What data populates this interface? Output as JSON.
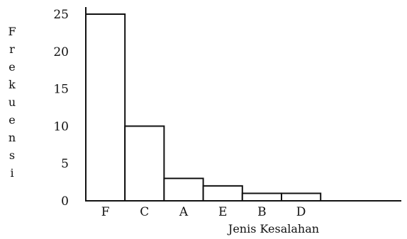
{
  "chart_data": {
    "type": "bar",
    "categories": [
      "F",
      "C",
      "A",
      "E",
      "B",
      "D"
    ],
    "values": [
      25,
      10,
      3,
      2,
      1,
      1
    ],
    "xlabel": "Jenis Kesalahan",
    "ylabel": "Frekuensi",
    "yticks": [
      "0",
      "5",
      "10",
      "15",
      "20",
      "25"
    ],
    "ylim": [
      0,
      25
    ],
    "grid": false,
    "legend": "none"
  },
  "colors": {
    "bar_fill": "#ffffff",
    "bar_stroke": "#111111",
    "axis": "#111111"
  }
}
